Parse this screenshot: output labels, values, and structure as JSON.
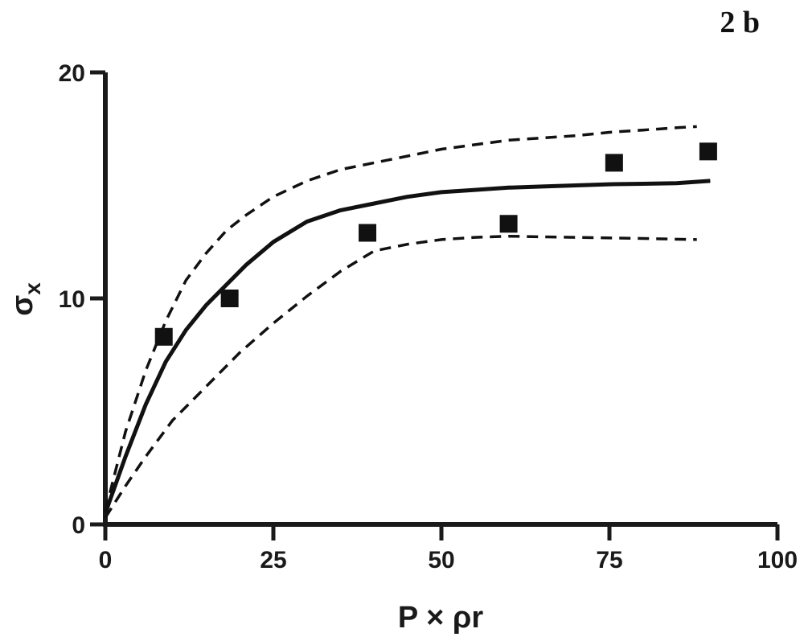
{
  "chart_data": {
    "type": "scatter",
    "title": "2 b",
    "xlabel": "P × ρr",
    "ylabel": "σx",
    "ylabel_main": "σ",
    "ylabel_sub": "x",
    "xlim": [
      0,
      100
    ],
    "ylim": [
      0,
      20
    ],
    "x_ticks": [
      0,
      25,
      50,
      75,
      100
    ],
    "y_ticks": [
      0,
      10,
      20
    ],
    "grid": false,
    "legend": "none",
    "points": [
      {
        "x": 8.7,
        "y": 8.3
      },
      {
        "x": 18.5,
        "y": 10.0
      },
      {
        "x": 39.0,
        "y": 12.9
      },
      {
        "x": 60.0,
        "y": 13.3
      },
      {
        "x": 75.7,
        "y": 16.0
      },
      {
        "x": 89.7,
        "y": 16.5
      }
    ],
    "fit_curve": {
      "style": "solid",
      "points": [
        [
          0,
          0.5
        ],
        [
          3,
          3.0
        ],
        [
          6,
          5.3
        ],
        [
          9,
          7.2
        ],
        [
          12,
          8.6
        ],
        [
          15,
          9.7
        ],
        [
          18,
          10.6
        ],
        [
          21,
          11.5
        ],
        [
          25,
          12.5
        ],
        [
          30,
          13.4
        ],
        [
          35,
          13.9
        ],
        [
          40,
          14.2
        ],
        [
          45,
          14.5
        ],
        [
          50,
          14.7
        ],
        [
          55,
          14.8
        ],
        [
          60,
          14.9
        ],
        [
          65,
          14.95
        ],
        [
          70,
          15.0
        ],
        [
          75,
          15.05
        ],
        [
          80,
          15.07
        ],
        [
          85,
          15.1
        ],
        [
          90,
          15.2
        ]
      ]
    },
    "confidence_bands": [
      {
        "style": "dashed",
        "bound": "upper",
        "points": [
          [
            0,
            0.6
          ],
          [
            3,
            4.1
          ],
          [
            6,
            6.8
          ],
          [
            9,
            9.0
          ],
          [
            12,
            10.8
          ],
          [
            15,
            12.0
          ],
          [
            18,
            13.0
          ],
          [
            21,
            13.7
          ],
          [
            25,
            14.5
          ],
          [
            30,
            15.2
          ],
          [
            35,
            15.7
          ],
          [
            40,
            16.0
          ],
          [
            45,
            16.3
          ],
          [
            50,
            16.6
          ],
          [
            55,
            16.8
          ],
          [
            60,
            17.0
          ],
          [
            65,
            17.1
          ],
          [
            70,
            17.2
          ],
          [
            75,
            17.35
          ],
          [
            80,
            17.45
          ],
          [
            85,
            17.55
          ],
          [
            88,
            17.6
          ]
        ]
      },
      {
        "style": "dashed",
        "bound": "lower",
        "points": [
          [
            0,
            0.3
          ],
          [
            3,
            1.7
          ],
          [
            6,
            3.0
          ],
          [
            10,
            4.6
          ],
          [
            15,
            6.1
          ],
          [
            20,
            7.6
          ],
          [
            25,
            8.9
          ],
          [
            30,
            10.1
          ],
          [
            35,
            11.2
          ],
          [
            40,
            12.1
          ],
          [
            45,
            12.4
          ],
          [
            50,
            12.6
          ],
          [
            55,
            12.7
          ],
          [
            60,
            12.75
          ],
          [
            70,
            12.7
          ],
          [
            80,
            12.65
          ],
          [
            88,
            12.6
          ]
        ]
      }
    ],
    "colors": {
      "axis": "#1a1a1a",
      "curve": "#111111",
      "marker": "#111111"
    }
  }
}
